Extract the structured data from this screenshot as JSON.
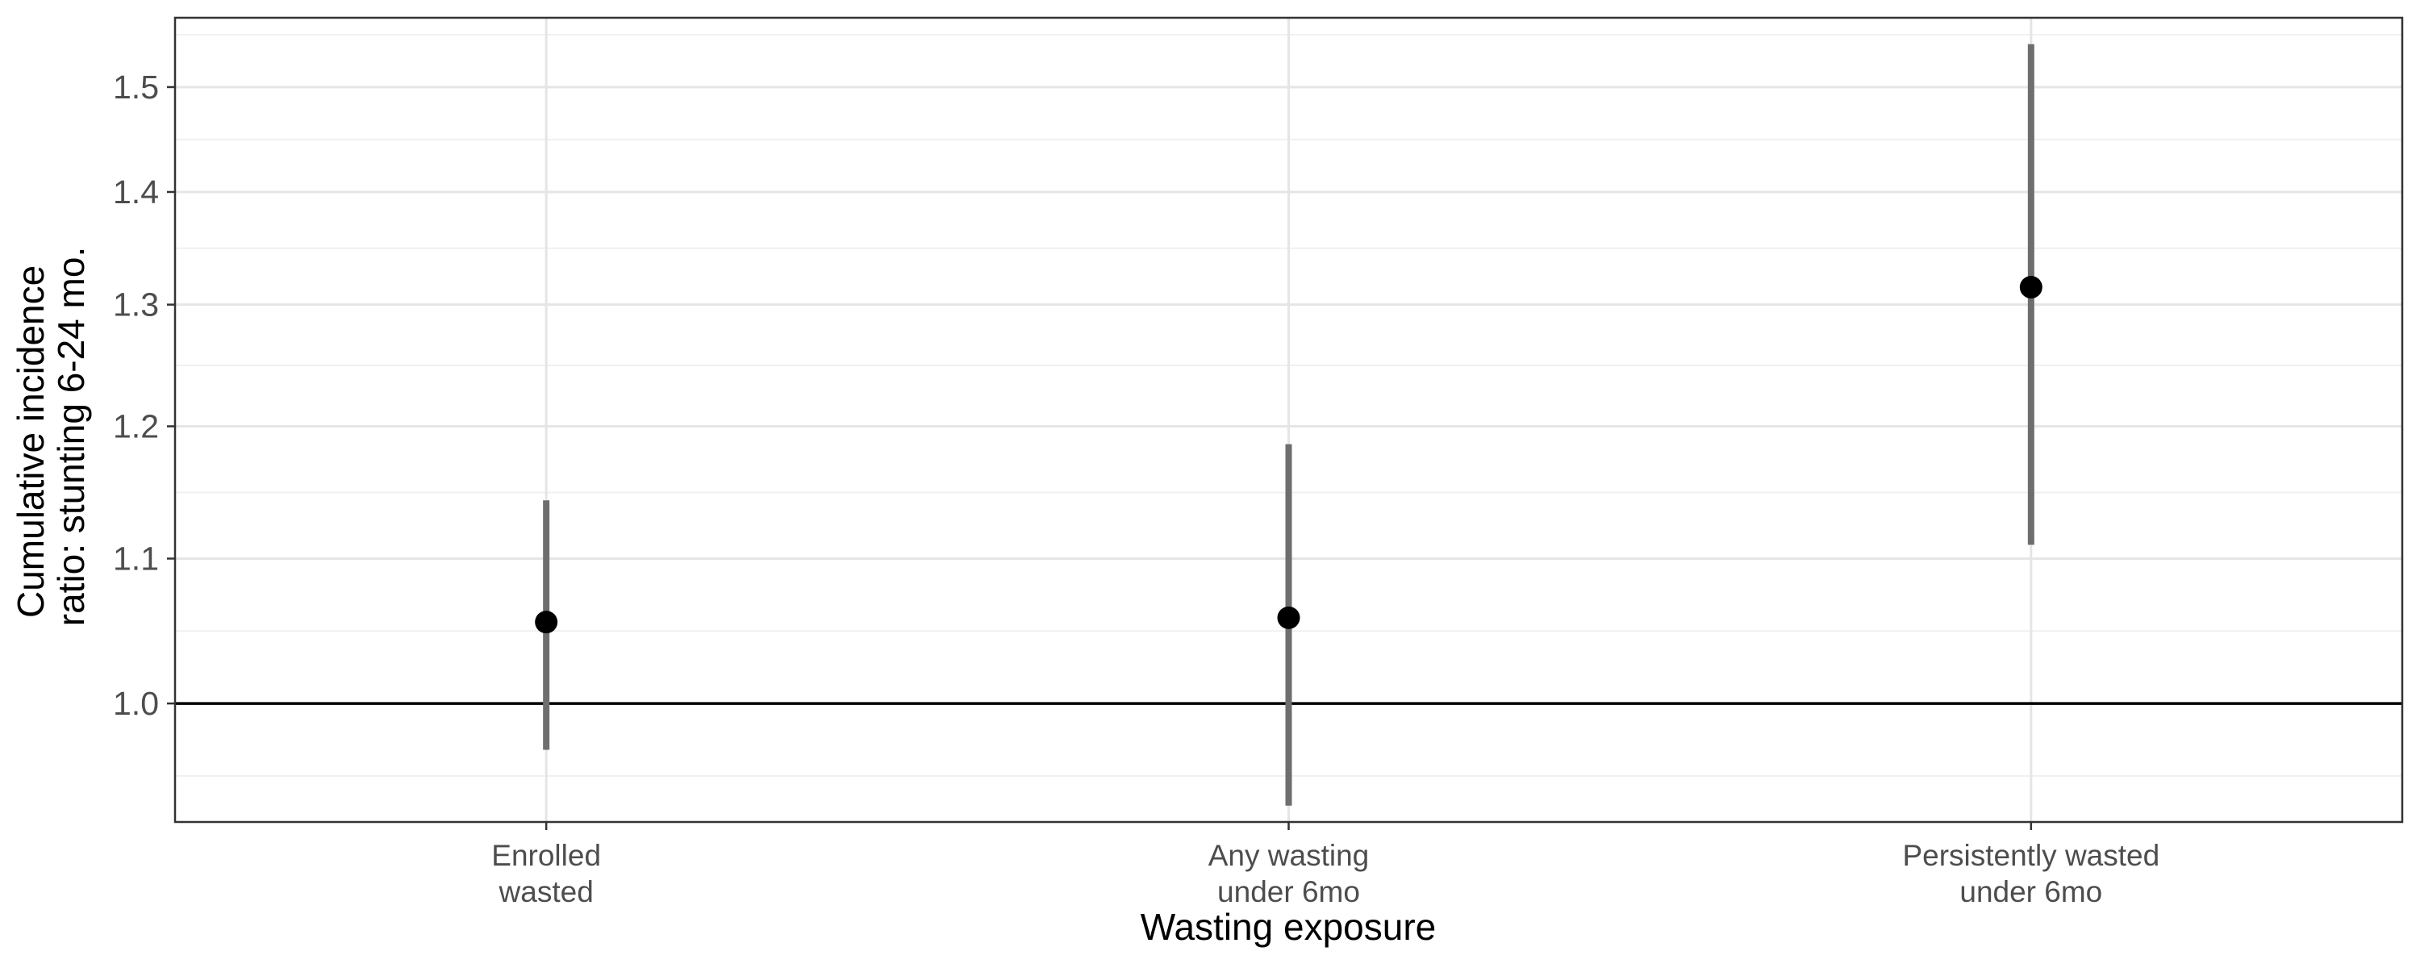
{
  "chart_data": {
    "type": "scatter",
    "title": "",
    "xlabel": "Wasting exposure",
    "ylabel": [
      "Cumulative incidence",
      "ratio: stunting 6-24 mo."
    ],
    "categories": [
      [
        "Enrolled",
        "wasted"
      ],
      [
        "Any wasting",
        "under 6mo"
      ],
      [
        "Persistently wasted",
        "under 6mo"
      ]
    ],
    "y_scale": "log",
    "ylim": [
      0.925,
      1.57
    ],
    "yticks": [
      1.0,
      1.1,
      1.2,
      1.3,
      1.4,
      1.5
    ],
    "ytick_labels": [
      "1.0",
      "1.1",
      "1.2",
      "1.3",
      "1.4",
      "1.5"
    ],
    "reference_line": 1.0,
    "grid": true,
    "legend": "none",
    "points": [
      {
        "estimate": 1.055,
        "ci_lower": 0.97,
        "ci_upper": 1.143
      },
      {
        "estimate": 1.058,
        "ci_lower": 0.935,
        "ci_upper": 1.186
      },
      {
        "estimate": 1.315,
        "ci_lower": 1.11,
        "ci_upper": 1.543
      }
    ],
    "colors": {
      "point": "#000000",
      "errorbar": "#6e6e6e",
      "reference_line": "#000000"
    }
  }
}
